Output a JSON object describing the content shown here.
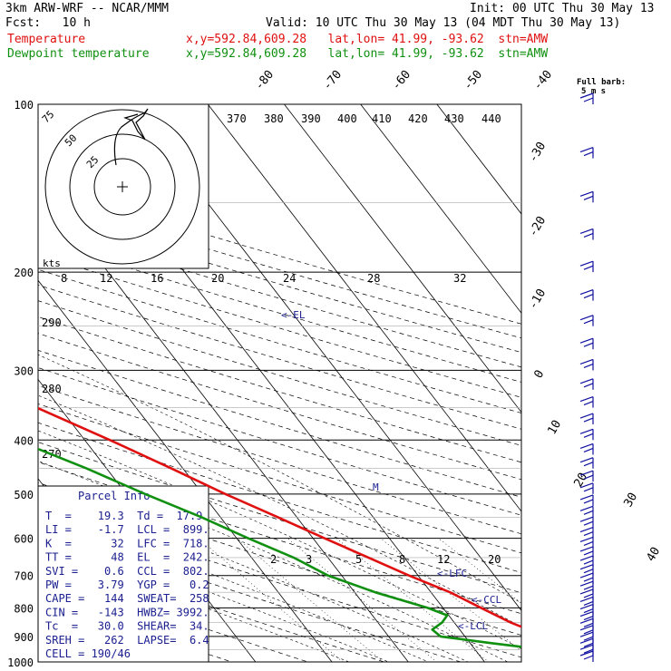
{
  "header": {
    "model": "3km ARW-WRF -- NCAR/MMM",
    "init": "Init: 00 UTC Thu 30 May 13",
    "fcst": "Fcst:   10 h",
    "valid": "Valid: 10 UTC Thu 30 May 13 (04 MDT Thu 30 May 13)",
    "line1": {
      "label": "Temperature",
      "loc": "x,y=592.84,609.28   lat,lon= 41.99, -93.62  stn=AMW"
    },
    "line2": {
      "label": "Dewpoint temperature",
      "loc": "x,y=592.84,609.28   lat,lon= 41.99, -93.62  stn=AMW"
    }
  },
  "barb_header": {
    "line1": "Full barb:",
    "line2": "5 m s"
  },
  "hodograph": {
    "ring_labels": [
      "25",
      "50",
      "75"
    ],
    "units": "kts"
  },
  "parcel_info": {
    "title": "Parcel Info",
    "rows": [
      "T  =    19.3  Td =  17.9",
      "LI =    -1.7  LCL =  899.",
      "K  =      32  LFC =  718.",
      "TT =      48  EL  =  242.",
      "SVI =    0.6  CCL =  802.",
      "PW =    3.79  YGP =   0.2",
      "CAPE =   144  SWEAT=  258",
      "CIN =   -143  HWBZ= 3992.",
      "Tc  =   30.0  SHEAR=  34.",
      "SREH =   262  LAPSE=  6.4",
      "CELL = 190/46"
    ]
  },
  "chart_data": {
    "type": "line",
    "title": "",
    "xlabel": "",
    "ylabel": "",
    "pressure_ticks": [
      "100",
      "200",
      "300",
      "400",
      "500",
      "600",
      "700",
      "800",
      "900",
      "1000"
    ],
    "isotherm_labels_top": [
      "-80",
      "-70",
      "-60",
      "-50",
      "-40"
    ],
    "isotherm_labels_right": [
      "-30",
      "-20",
      "-10",
      "0",
      "10",
      "20",
      "30",
      "40"
    ],
    "theta_labels": [
      "370",
      "380",
      "390",
      "400",
      "410",
      "420",
      "430",
      "440"
    ],
    "mixing_ratio_labels": [
      "2",
      "3",
      "5",
      "8",
      "12",
      "20"
    ],
    "upper_inset_mixing_labels": [
      "8",
      "12",
      "16",
      "20",
      "24",
      "28",
      "32"
    ],
    "theta_e_left_labels": [
      "290",
      "280",
      "270"
    ],
    "markers": [
      "<-EL",
      "<-LFC",
      "<-CCL",
      "<-LCL",
      "M"
    ],
    "series": [
      {
        "name": "Temperature",
        "color": "#e01010",
        "points": [
          [
            1000,
            19.3
          ],
          [
            975,
            19.8
          ],
          [
            950,
            23.0
          ],
          [
            925,
            22.8
          ],
          [
            900,
            20.6
          ],
          [
            850,
            17.4
          ],
          [
            800,
            15.0
          ],
          [
            750,
            12.5
          ],
          [
            700,
            8.8
          ],
          [
            650,
            5.3
          ],
          [
            600,
            1.5
          ],
          [
            550,
            -2.5
          ],
          [
            500,
            -7.0
          ],
          [
            450,
            -11.5
          ],
          [
            400,
            -16.7
          ],
          [
            350,
            -23.0
          ],
          [
            300,
            -30.5
          ],
          [
            250,
            -39.5
          ],
          [
            200,
            -50.5
          ],
          [
            175,
            -56.5
          ],
          [
            150,
            -59.5
          ],
          [
            125,
            -60.5
          ],
          [
            100,
            -67.5
          ]
        ]
      },
      {
        "name": "Dewpoint temperature",
        "color": "#109010",
        "points": [
          [
            1000,
            17.9
          ],
          [
            975,
            18.2
          ],
          [
            950,
            18.9
          ],
          [
            925,
            12.7
          ],
          [
            900,
            6.8
          ],
          [
            875,
            6.4
          ],
          [
            850,
            8.4
          ],
          [
            825,
            9.8
          ],
          [
            800,
            8.0
          ],
          [
            750,
            2.7
          ],
          [
            700,
            -1.8
          ],
          [
            650,
            -4.5
          ],
          [
            600,
            -8.5
          ],
          [
            550,
            -12.5
          ],
          [
            500,
            -17.5
          ],
          [
            450,
            -22.6
          ],
          [
            400,
            -29.0
          ],
          [
            350,
            -36.0
          ],
          [
            300,
            -44.0
          ],
          [
            250,
            -56.0
          ],
          [
            225,
            -67.0
          ],
          [
            200,
            -73.0
          ],
          [
            175,
            -77.8
          ],
          [
            150,
            -77.0
          ],
          [
            125,
            -87.0
          ],
          [
            100,
            -92.0
          ]
        ]
      }
    ]
  },
  "colors": {
    "temperature": "#e01010",
    "dewpoint": "#109010",
    "annotation": "#1c2090",
    "barb": "#1010a0"
  }
}
